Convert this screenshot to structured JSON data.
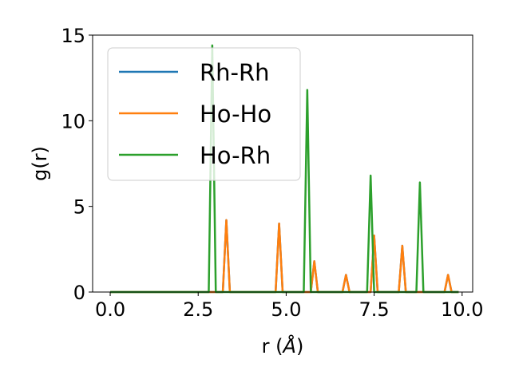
{
  "chart_data": {
    "type": "line",
    "xlabel": "r (",
    "xlabel_unit": "Å",
    "xlabel_close": ")",
    "ylabel": "g(r)",
    "xlim": [
      -0.5,
      10.3
    ],
    "ylim": [
      0,
      15
    ],
    "xticks": [
      0.0,
      2.5,
      5.0,
      7.5,
      10.0
    ],
    "xtick_labels": [
      "0.0",
      "2.5",
      "5.0",
      "7.5",
      "10.0"
    ],
    "yticks": [
      0,
      5,
      10,
      15
    ],
    "ytick_labels": [
      "0",
      "5",
      "10",
      "15"
    ],
    "grid": false,
    "legend": "top-left",
    "series": [
      {
        "name": "Rh-Rh",
        "color": "#1f77b4",
        "peaks": [
          [
            3.3,
            4.2
          ],
          [
            4.8,
            4.0
          ],
          [
            5.8,
            1.8
          ],
          [
            6.7,
            1.0
          ],
          [
            7.5,
            3.3
          ],
          [
            8.3,
            2.7
          ],
          [
            9.6,
            1.0
          ]
        ]
      },
      {
        "name": "Ho-Ho",
        "color": "#ff7f0e",
        "peaks": [
          [
            3.3,
            4.2
          ],
          [
            4.8,
            4.0
          ],
          [
            5.8,
            1.8
          ],
          [
            6.7,
            1.0
          ],
          [
            7.5,
            3.3
          ],
          [
            8.3,
            2.7
          ],
          [
            9.6,
            1.0
          ]
        ]
      },
      {
        "name": "Ho-Rh",
        "color": "#2ca02c",
        "peaks": [
          [
            2.9,
            14.4
          ],
          [
            5.6,
            11.8
          ],
          [
            7.4,
            6.8
          ],
          [
            8.8,
            6.4
          ]
        ]
      }
    ],
    "x_range": [
      0.0,
      9.9
    ],
    "peak_half_width": 0.1
  }
}
